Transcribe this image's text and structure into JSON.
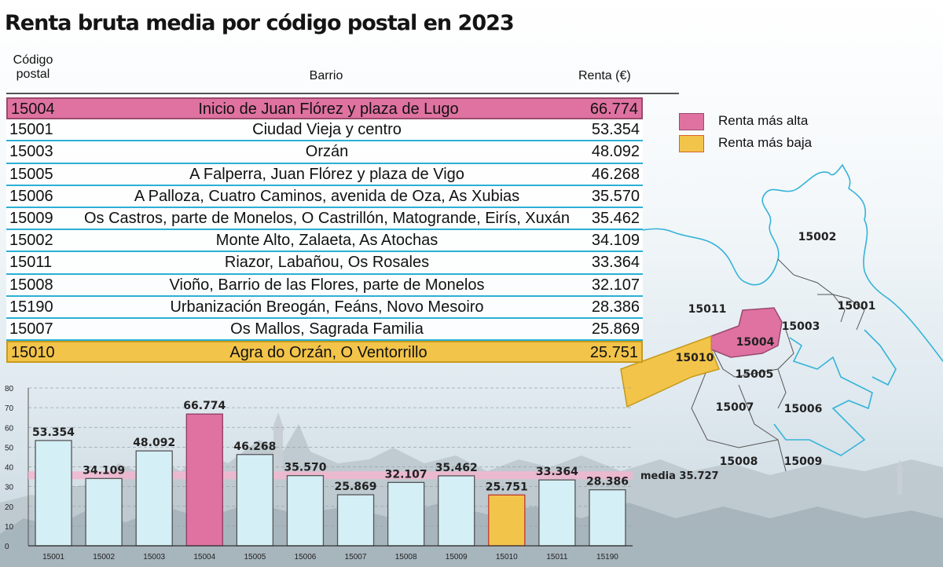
{
  "title": "Renta bruta media por código postal en 2023",
  "table": {
    "headers": {
      "cp_line1": "Código",
      "cp_line2": "postal",
      "barrio": "Barrio",
      "renta": "Renta  (€)"
    },
    "rows": [
      {
        "cp": "15004",
        "barrio": "Inicio de Juan Flórez y plaza de Lugo",
        "renta": "66.774",
        "highlight": "alta"
      },
      {
        "cp": "15001",
        "barrio": "Ciudad Vieja y centro",
        "renta": "53.354"
      },
      {
        "cp": "15003",
        "barrio": "Orzán",
        "renta": "48.092"
      },
      {
        "cp": "15005",
        "barrio": "A Falperra, Juan Flórez y plaza de Vigo",
        "renta": "46.268"
      },
      {
        "cp": "15006",
        "barrio": "A Palloza, Cuatro Caminos, avenida de Oza, As Xubias",
        "renta": "35.570"
      },
      {
        "cp": "15009",
        "barrio": "Os Castros, parte de Monelos, O Castrillón, Matogrande, Eirís, Xuxán",
        "renta": "35.462"
      },
      {
        "cp": "15002",
        "barrio": "Monte Alto, Zalaeta, As Atochas",
        "renta": "34.109"
      },
      {
        "cp": "15011",
        "barrio": "Riazor, Labañou, Os Rosales",
        "renta": "33.364"
      },
      {
        "cp": "15008",
        "barrio": "Vioño, Barrio de las Flores, parte de Monelos",
        "renta": "32.107"
      },
      {
        "cp": "15190",
        "barrio": "Urbanización Breogán, Feáns, Novo Mesoiro",
        "renta": "28.386"
      },
      {
        "cp": "15007",
        "barrio": "Os Mallos, Sagrada Familia",
        "renta": "25.869"
      },
      {
        "cp": "15010",
        "barrio": "Agra do Orzán, O Ventorrillo",
        "renta": "25.751",
        "highlight": "baja"
      }
    ]
  },
  "legend": [
    {
      "label": "Renta más alta",
      "color": "#df72a1"
    },
    {
      "label": "Renta más baja",
      "color": "#f3c44a"
    }
  ],
  "map_labels": [
    "15002",
    "15001",
    "15011",
    "15003",
    "15004",
    "15010",
    "15005",
    "15007",
    "15006",
    "15008",
    "15009"
  ],
  "chart_data": {
    "type": "bar",
    "title": "",
    "xlabel": "",
    "ylabel": "",
    "categories": [
      "15001",
      "15002",
      "15003",
      "15004",
      "15005",
      "15006",
      "15007",
      "15008",
      "15009",
      "15010",
      "15011",
      "15190"
    ],
    "values": [
      53.354,
      34.109,
      48.092,
      66.774,
      46.268,
      35.57,
      25.869,
      32.107,
      35.462,
      25.751,
      33.364,
      28.386
    ],
    "value_labels": [
      "53.354",
      "34.109",
      "48.092",
      "66.774",
      "46.268",
      "35.570",
      "25.869",
      "32.107",
      "35.462",
      "25.751",
      "33.364",
      "28.386"
    ],
    "ylim": [
      0,
      80
    ],
    "yticks": [
      0,
      10,
      20,
      30,
      40,
      50,
      60,
      70,
      80
    ],
    "grid": true,
    "mean": {
      "value": 35.727,
      "label": "media 35.727"
    },
    "colors": {
      "default": "#d4eff6",
      "alta": "#df72a1",
      "baja": "#f3c44a",
      "mean_band": "#f2b6cf"
    },
    "highlight": {
      "15004": "alta",
      "15010": "baja"
    }
  }
}
